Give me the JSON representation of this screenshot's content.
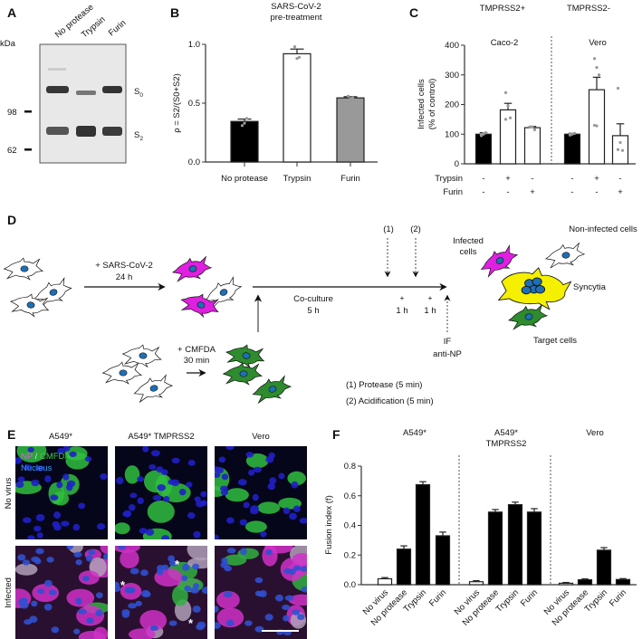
{
  "panels": {
    "A": {
      "label": "A",
      "kda": "kDa",
      "markers": [
        "98",
        "62"
      ],
      "lanes": [
        "No protease",
        "Trypsin",
        "Furin"
      ],
      "bands": [
        "S",
        "0",
        "S",
        "2"
      ]
    },
    "B": {
      "label": "B",
      "title": [
        "SARS-CoV-2",
        "pre-treatment"
      ]
    },
    "C": {
      "label": "C",
      "groups_top": [
        "TMPRSS2+",
        "TMPRSS2-"
      ],
      "cells": [
        "Caco-2",
        "Vero"
      ],
      "row_labels": [
        "Trypsin",
        "Furin"
      ],
      "trypsin": [
        "-",
        "+",
        "-",
        "-",
        "+",
        "-"
      ],
      "furin": [
        "-",
        "-",
        "+",
        "-",
        "-",
        "+"
      ]
    },
    "D": {
      "label": "D",
      "step1": [
        "+ SARS-CoV-2",
        "24 h"
      ],
      "step2": [
        "+ CMFDA",
        "30 min"
      ],
      "coculture": [
        "Co-culture",
        "5 h"
      ],
      "marks": [
        "(1)",
        "(2)"
      ],
      "plus": [
        "+",
        "+"
      ],
      "hours": [
        "1 h",
        "1 h"
      ],
      "if": [
        "IF",
        "anti-NP"
      ],
      "legend": [
        "(1) Protease (5 min)",
        "(2) Acidification (5 min)"
      ],
      "outcomes": {
        "infected": [
          "Infected",
          "cells"
        ],
        "noninfected": "Non-infected cells",
        "syncytia": "Syncytia",
        "target": "Target cells"
      },
      "colors": {
        "infected": "#e020e0",
        "target": "#2e8b2e",
        "syncytia": "#f4f000",
        "nucleus": "#1e6fb5"
      }
    },
    "E": {
      "label": "E",
      "columns": [
        "A549*",
        "A549* TMPRSS2",
        "Vero"
      ],
      "rows": [
        "No virus",
        "Infected"
      ],
      "stain": {
        "np": "NP",
        "sep": " / ",
        "cmfda": "CMFDA",
        "nucleus": "Nucleus"
      },
      "asterisk": "*"
    },
    "F": {
      "label": "F"
    }
  },
  "chart_data": [
    {
      "id": "B",
      "type": "bar",
      "title": "SARS-CoV-2 pre-treatment",
      "ylabel": "ρ = S2/(S0+S2)",
      "ylim": [
        0,
        1.0
      ],
      "yticks": [
        "0.0",
        "0.5",
        "1.0"
      ],
      "ytick_values": [
        0,
        0.5,
        1.0
      ],
      "categories": [
        "No protease",
        "Trypsin",
        "Furin"
      ],
      "values": [
        0.345,
        0.92,
        0.545
      ],
      "errors": [
        0.02,
        0.04,
        0.01
      ],
      "points": [
        [
          0.31,
          0.33,
          0.37
        ],
        [
          0.98,
          0.88,
          0.89
        ],
        [
          0.56,
          0.54,
          0.545
        ]
      ],
      "fills": [
        "#000000",
        "#ffffff",
        "#999999"
      ]
    },
    {
      "id": "C",
      "type": "bar",
      "ylabel": [
        "Infected cells",
        "(% of control)"
      ],
      "ylim": [
        0,
        400
      ],
      "yticks": [
        "0",
        "100",
        "200",
        "300",
        "400"
      ],
      "ytick_values": [
        0,
        100,
        200,
        300,
        400
      ],
      "categories": [
        "Caco-2 control",
        "Caco-2 Trypsin",
        "Caco-2 Furin",
        "Vero control",
        "Vero Trypsin",
        "Vero Furin"
      ],
      "values": [
        100,
        182,
        122,
        100,
        250,
        95
      ],
      "errors": [
        5,
        22,
        4,
        3,
        42,
        40
      ],
      "points": [
        [
          95,
          100,
          105,
          98,
          102
        ],
        [
          240,
          195,
          155,
          150
        ],
        [
          125,
          125,
          115
        ],
        [
          97,
          100,
          103,
          99,
          101
        ],
        [
          355,
          325,
          300,
          130,
          128
        ],
        [
          255,
          72,
          45,
          48
        ]
      ],
      "fills": [
        "#000000",
        "#ffffff",
        "#ffffff",
        "#000000",
        "#ffffff",
        "#ffffff"
      ]
    },
    {
      "id": "F",
      "type": "bar",
      "ylabel": "Fusion index (f)",
      "ylim": [
        0,
        0.8
      ],
      "yticks": [
        "0.0",
        "0.2",
        "0.4",
        "0.6",
        "0.8"
      ],
      "ytick_values": [
        0,
        0.2,
        0.4,
        0.6,
        0.8
      ],
      "groups": [
        {
          "name": [
            "A549*"
          ]
        },
        {
          "name": [
            "A549*",
            "TMPRSS2"
          ]
        },
        {
          "name": [
            "Vero"
          ]
        }
      ],
      "categories": [
        "No virus",
        "No protease",
        "Trypsin",
        "Furin"
      ],
      "series": [
        {
          "name": "A549*",
          "values": [
            0.04,
            0.24,
            0.675,
            0.33
          ],
          "errors": [
            0.008,
            0.022,
            0.02,
            0.025
          ]
        },
        {
          "name": "A549* TMPRSS2",
          "values": [
            0.02,
            0.49,
            0.54,
            0.49
          ],
          "errors": [
            0.007,
            0.017,
            0.017,
            0.023
          ]
        },
        {
          "name": "Vero",
          "values": [
            0.01,
            0.033,
            0.233,
            0.035
          ],
          "errors": [
            0.005,
            0.006,
            0.017,
            0.006
          ]
        }
      ]
    }
  ]
}
